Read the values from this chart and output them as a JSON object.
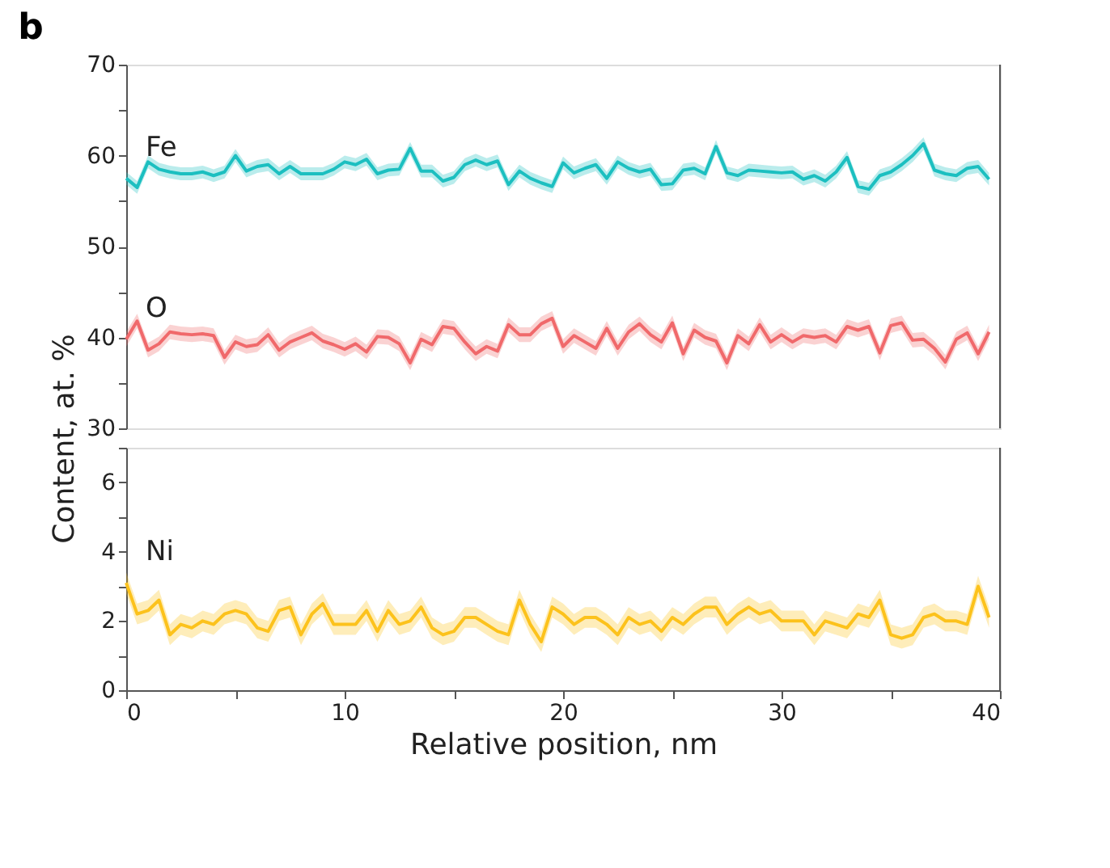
{
  "chart_data": [
    {
      "type": "line",
      "title": "b",
      "ylabel": "Content, at. %",
      "tick_labels": "y",
      "grid": false,
      "marker": "none",
      "line_style": "solid",
      "xlim": [
        0,
        40
      ],
      "ylim": [
        30,
        70
      ],
      "yticks": [
        30,
        {
          "value": 35,
          "label": null
        },
        40,
        {
          "value": 45,
          "label": null
        },
        50,
        {
          "value": 55,
          "label": null
        },
        60,
        {
          "value": 65,
          "label": null
        },
        70
      ],
      "x": [
        0,
        0.5,
        1,
        1.5,
        2,
        2.5,
        3,
        3.5,
        4,
        4.5,
        5,
        5.5,
        6,
        6.5,
        7,
        7.5,
        8,
        8.5,
        9,
        9.5,
        10,
        10.5,
        11,
        11.5,
        12,
        12.5,
        13,
        13.5,
        14,
        14.5,
        15,
        15.5,
        16,
        16.5,
        17,
        17.5,
        18,
        18.5,
        19,
        19.5,
        20,
        20.5,
        21,
        21.5,
        22,
        22.5,
        23,
        23.5,
        24,
        24.5,
        25,
        25.5,
        26,
        26.5,
        27,
        27.5,
        28,
        28.5,
        29,
        29.5,
        30,
        30.5,
        31,
        31.5,
        32,
        32.5,
        33,
        33.5,
        34,
        34.5,
        35,
        35.5,
        36,
        36.5,
        37,
        37.5,
        38,
        38.5,
        39,
        39.5
      ],
      "series": [
        {
          "name": "Fe",
          "color": "#1cbfc0",
          "values": [
            57.5,
            56.5,
            59.3,
            58.5,
            58.2,
            58,
            58,
            58.2,
            57.8,
            58.2,
            60,
            58.3,
            58.8,
            59,
            58,
            58.8,
            58,
            58,
            58,
            58.5,
            59.3,
            59,
            59.6,
            58,
            58.4,
            58.5,
            60.8,
            58.3,
            58.3,
            57.2,
            57.6,
            59,
            59.5,
            59,
            59.4,
            56.8,
            58.3,
            57.5,
            57,
            56.6,
            59.2,
            58.1,
            58.6,
            59,
            57.5,
            59.3,
            58.6,
            58.2,
            58.5,
            56.8,
            56.9,
            58.4,
            58.6,
            58,
            61,
            58.1,
            57.8,
            58.4,
            58.3,
            58.2,
            58.1,
            58.2,
            57.4,
            57.8,
            57.2,
            58.2,
            59.8,
            56.6,
            56.3,
            57.8,
            58.2,
            59,
            60,
            61.3,
            58.4,
            58,
            57.8,
            58.6,
            58.8,
            57.4
          ],
          "lower": [
            56.8,
            55.8,
            58.6,
            57.8,
            57.5,
            57.3,
            57.3,
            57.5,
            57.1,
            57.5,
            59.3,
            57.6,
            58.1,
            58.3,
            57.3,
            58.1,
            57.3,
            57.3,
            57.3,
            57.8,
            58.6,
            58.3,
            58.9,
            57.3,
            57.7,
            57.8,
            60.1,
            57.6,
            57.6,
            56.5,
            56.9,
            58.3,
            58.8,
            58.3,
            58.7,
            56.1,
            57.6,
            56.8,
            56.3,
            55.9,
            58.5,
            57.4,
            57.9,
            58.3,
            56.8,
            58.6,
            57.9,
            57.5,
            57.8,
            56.1,
            56.2,
            57.7,
            57.9,
            57.3,
            60.3,
            57.4,
            57.1,
            57.7,
            57.6,
            57.5,
            57.4,
            57.5,
            56.7,
            57.1,
            56.5,
            57.5,
            59.1,
            55.9,
            55.6,
            57.1,
            57.5,
            58.3,
            59.3,
            60.6,
            57.7,
            57.3,
            57.1,
            57.9,
            58.1,
            56.7
          ],
          "upper": [
            58.2,
            57.2,
            60,
            59.2,
            58.9,
            58.7,
            58.7,
            58.9,
            58.5,
            58.9,
            60.7,
            59,
            59.5,
            59.7,
            58.7,
            59.5,
            58.7,
            58.7,
            58.7,
            59.2,
            60,
            59.7,
            60.3,
            58.7,
            59.1,
            59.2,
            61.5,
            59,
            59,
            57.9,
            58.3,
            59.7,
            60.2,
            59.7,
            60.1,
            57.5,
            59,
            58.2,
            57.7,
            57.3,
            59.9,
            58.8,
            59.3,
            59.7,
            58.2,
            60,
            59.3,
            58.9,
            59.2,
            57.5,
            57.6,
            59.1,
            59.3,
            58.7,
            61.7,
            58.8,
            58.5,
            59.1,
            59,
            58.9,
            58.8,
            58.9,
            58.1,
            58.5,
            57.9,
            58.9,
            60.5,
            57.3,
            57,
            58.5,
            58.9,
            59.7,
            60.7,
            62,
            59.1,
            58.7,
            58.5,
            59.3,
            59.5,
            58.1
          ]
        },
        {
          "name": "O",
          "color": "#f0696b",
          "values": [
            39.8,
            41.8,
            38.6,
            39.3,
            40.6,
            40.4,
            40.3,
            40.4,
            40.2,
            37.8,
            39.5,
            39,
            39.2,
            40.3,
            38.6,
            39.5,
            40,
            40.5,
            39.6,
            39.2,
            38.7,
            39.3,
            38.4,
            40.1,
            40,
            39.3,
            37.2,
            39.8,
            39.2,
            41.2,
            41,
            39.5,
            38.2,
            39,
            38.5,
            41.4,
            40.3,
            40.3,
            41.5,
            42.1,
            39,
            40.2,
            39.5,
            38.8,
            41,
            38.8,
            40.6,
            41.5,
            40.3,
            39.5,
            41.6,
            38.2,
            40.8,
            40,
            39.6,
            37.2,
            40.2,
            39.3,
            41.4,
            39.5,
            40.3,
            39.5,
            40.2,
            40,
            40.2,
            39.5,
            41.2,
            40.8,
            41.2,
            38.3,
            41.3,
            41.6,
            39.7,
            39.8,
            38.8,
            37.3,
            39.8,
            40.5,
            38.2,
            40.6
          ],
          "lower": [
            39,
            41,
            37.8,
            38.5,
            39.8,
            39.6,
            39.5,
            39.6,
            39.4,
            37,
            38.7,
            38.2,
            38.4,
            39.5,
            37.8,
            38.7,
            39.2,
            39.7,
            38.8,
            38.4,
            37.9,
            38.5,
            37.6,
            39.3,
            39.2,
            38.5,
            36.4,
            39,
            38.4,
            40.4,
            40.2,
            38.7,
            37.4,
            38.2,
            37.7,
            40.6,
            39.5,
            39.5,
            40.7,
            41.3,
            38.2,
            39.4,
            38.7,
            38,
            40.2,
            38,
            39.8,
            40.7,
            39.5,
            38.7,
            40.8,
            37.4,
            40,
            39.2,
            38.8,
            36.4,
            39.4,
            38.5,
            40.6,
            38.7,
            39.5,
            38.7,
            39.4,
            39.2,
            39.4,
            38.7,
            40.4,
            40,
            40.4,
            37.5,
            40.5,
            40.8,
            38.9,
            39,
            38,
            36.5,
            39,
            39.7,
            37.4,
            39.8
          ],
          "upper": [
            40.6,
            42.6,
            39.4,
            40.1,
            41.4,
            41.2,
            41.1,
            41.2,
            41,
            38.6,
            40.3,
            39.8,
            40,
            41.1,
            39.4,
            40.3,
            40.8,
            41.3,
            40.4,
            40,
            39.5,
            40.1,
            39.2,
            40.9,
            40.8,
            40.1,
            38,
            40.6,
            40,
            42,
            41.8,
            40.3,
            39,
            39.8,
            39.3,
            42.2,
            41.1,
            41.1,
            42.3,
            42.9,
            39.8,
            41,
            40.3,
            39.6,
            41.8,
            39.6,
            41.4,
            42.3,
            41.1,
            40.3,
            42.4,
            39,
            41.6,
            40.8,
            40.4,
            38,
            41,
            40.1,
            42.2,
            40.3,
            41.1,
            40.3,
            41,
            40.8,
            41,
            40.3,
            42,
            41.6,
            42,
            39.1,
            42.1,
            42.4,
            40.5,
            40.6,
            39.6,
            38.1,
            40.6,
            41.3,
            39,
            41.4
          ]
        }
      ]
    },
    {
      "type": "line",
      "xlabel": "Relative position, nm",
      "grid": false,
      "marker": "none",
      "line_style": "solid",
      "xlim": [
        0,
        40
      ],
      "xticks": [
        0,
        {
          "value": 5,
          "label": null
        },
        10,
        {
          "value": 15,
          "label": null
        },
        20,
        {
          "value": 25,
          "label": null
        },
        30,
        {
          "value": 35,
          "label": null
        },
        40
      ],
      "ylim": [
        0,
        7
      ],
      "yticks": [
        0,
        {
          "value": 1,
          "label": null
        },
        2,
        {
          "value": 3,
          "label": null
        },
        4,
        {
          "value": 5,
          "label": null
        },
        6,
        {
          "value": 7,
          "label": null
        }
      ],
      "x": [
        0,
        0.5,
        1,
        1.5,
        2,
        2.5,
        3,
        3.5,
        4,
        4.5,
        5,
        5.5,
        6,
        6.5,
        7,
        7.5,
        8,
        8.5,
        9,
        9.5,
        10,
        10.5,
        11,
        11.5,
        12,
        12.5,
        13,
        13.5,
        14,
        14.5,
        15,
        15.5,
        16,
        16.5,
        17,
        17.5,
        18,
        18.5,
        19,
        19.5,
        20,
        20.5,
        21,
        21.5,
        22,
        22.5,
        23,
        23.5,
        24,
        24.5,
        25,
        25.5,
        26,
        26.5,
        27,
        27.5,
        28,
        28.5,
        29,
        29.5,
        30,
        30.5,
        31,
        31.5,
        32,
        32.5,
        33,
        33.5,
        34,
        34.5,
        35,
        35.5,
        36,
        36.5,
        37,
        37.5,
        38,
        38.5,
        39,
        39.5
      ],
      "series": [
        {
          "name": "Ni",
          "color": "#fcc21c",
          "values": [
            3.1,
            2.2,
            2.3,
            2.6,
            1.6,
            1.9,
            1.8,
            2,
            1.9,
            2.2,
            2.3,
            2.2,
            1.8,
            1.7,
            2.3,
            2.4,
            1.6,
            2.2,
            2.5,
            1.9,
            1.9,
            1.9,
            2.3,
            1.7,
            2.3,
            1.9,
            2,
            2.4,
            1.8,
            1.6,
            1.7,
            2.1,
            2.1,
            1.9,
            1.7,
            1.6,
            2.6,
            1.9,
            1.4,
            2.4,
            2.2,
            1.9,
            2.1,
            2.1,
            1.9,
            1.6,
            2.1,
            1.9,
            2,
            1.7,
            2.1,
            1.9,
            2.2,
            2.4,
            2.4,
            1.9,
            2.2,
            2.4,
            2.2,
            2.3,
            2,
            2,
            2,
            1.6,
            2,
            1.9,
            1.8,
            2.2,
            2.1,
            2.6,
            1.6,
            1.5,
            1.6,
            2.1,
            2.2,
            2,
            2,
            1.9,
            3,
            2.1
          ],
          "lower": [
            2.8,
            1.9,
            2,
            2.3,
            1.3,
            1.6,
            1.5,
            1.7,
            1.6,
            1.9,
            2,
            1.9,
            1.5,
            1.4,
            2,
            2.1,
            1.3,
            1.9,
            2.2,
            1.6,
            1.6,
            1.6,
            2,
            1.4,
            2,
            1.6,
            1.7,
            2.1,
            1.5,
            1.3,
            1.4,
            1.8,
            1.8,
            1.6,
            1.4,
            1.3,
            2.3,
            1.6,
            1.1,
            2.1,
            1.9,
            1.6,
            1.8,
            1.8,
            1.6,
            1.3,
            1.8,
            1.6,
            1.7,
            1.4,
            1.8,
            1.6,
            1.9,
            2.1,
            2.1,
            1.6,
            1.9,
            2.1,
            1.9,
            2,
            1.7,
            1.7,
            1.7,
            1.3,
            1.7,
            1.6,
            1.5,
            1.9,
            1.8,
            2.3,
            1.3,
            1.2,
            1.3,
            1.8,
            1.9,
            1.7,
            1.7,
            1.6,
            2.7,
            1.8
          ],
          "upper": [
            3.4,
            2.5,
            2.6,
            2.9,
            1.9,
            2.2,
            2.1,
            2.3,
            2.2,
            2.5,
            2.6,
            2.5,
            2.1,
            2,
            2.6,
            2.7,
            1.9,
            2.5,
            2.8,
            2.2,
            2.2,
            2.2,
            2.6,
            2,
            2.6,
            2.2,
            2.3,
            2.7,
            2.1,
            1.9,
            2,
            2.4,
            2.4,
            2.2,
            2,
            1.9,
            2.9,
            2.2,
            1.7,
            2.7,
            2.5,
            2.2,
            2.4,
            2.4,
            2.2,
            1.9,
            2.4,
            2.2,
            2.3,
            2,
            2.4,
            2.2,
            2.5,
            2.7,
            2.7,
            2.2,
            2.5,
            2.7,
            2.5,
            2.6,
            2.3,
            2.3,
            2.3,
            1.9,
            2.3,
            2.2,
            2.1,
            2.5,
            2.4,
            2.9,
            1.9,
            1.8,
            1.9,
            2.4,
            2.5,
            2.3,
            2.3,
            2.2,
            3.3,
            2.4
          ]
        }
      ]
    }
  ]
}
